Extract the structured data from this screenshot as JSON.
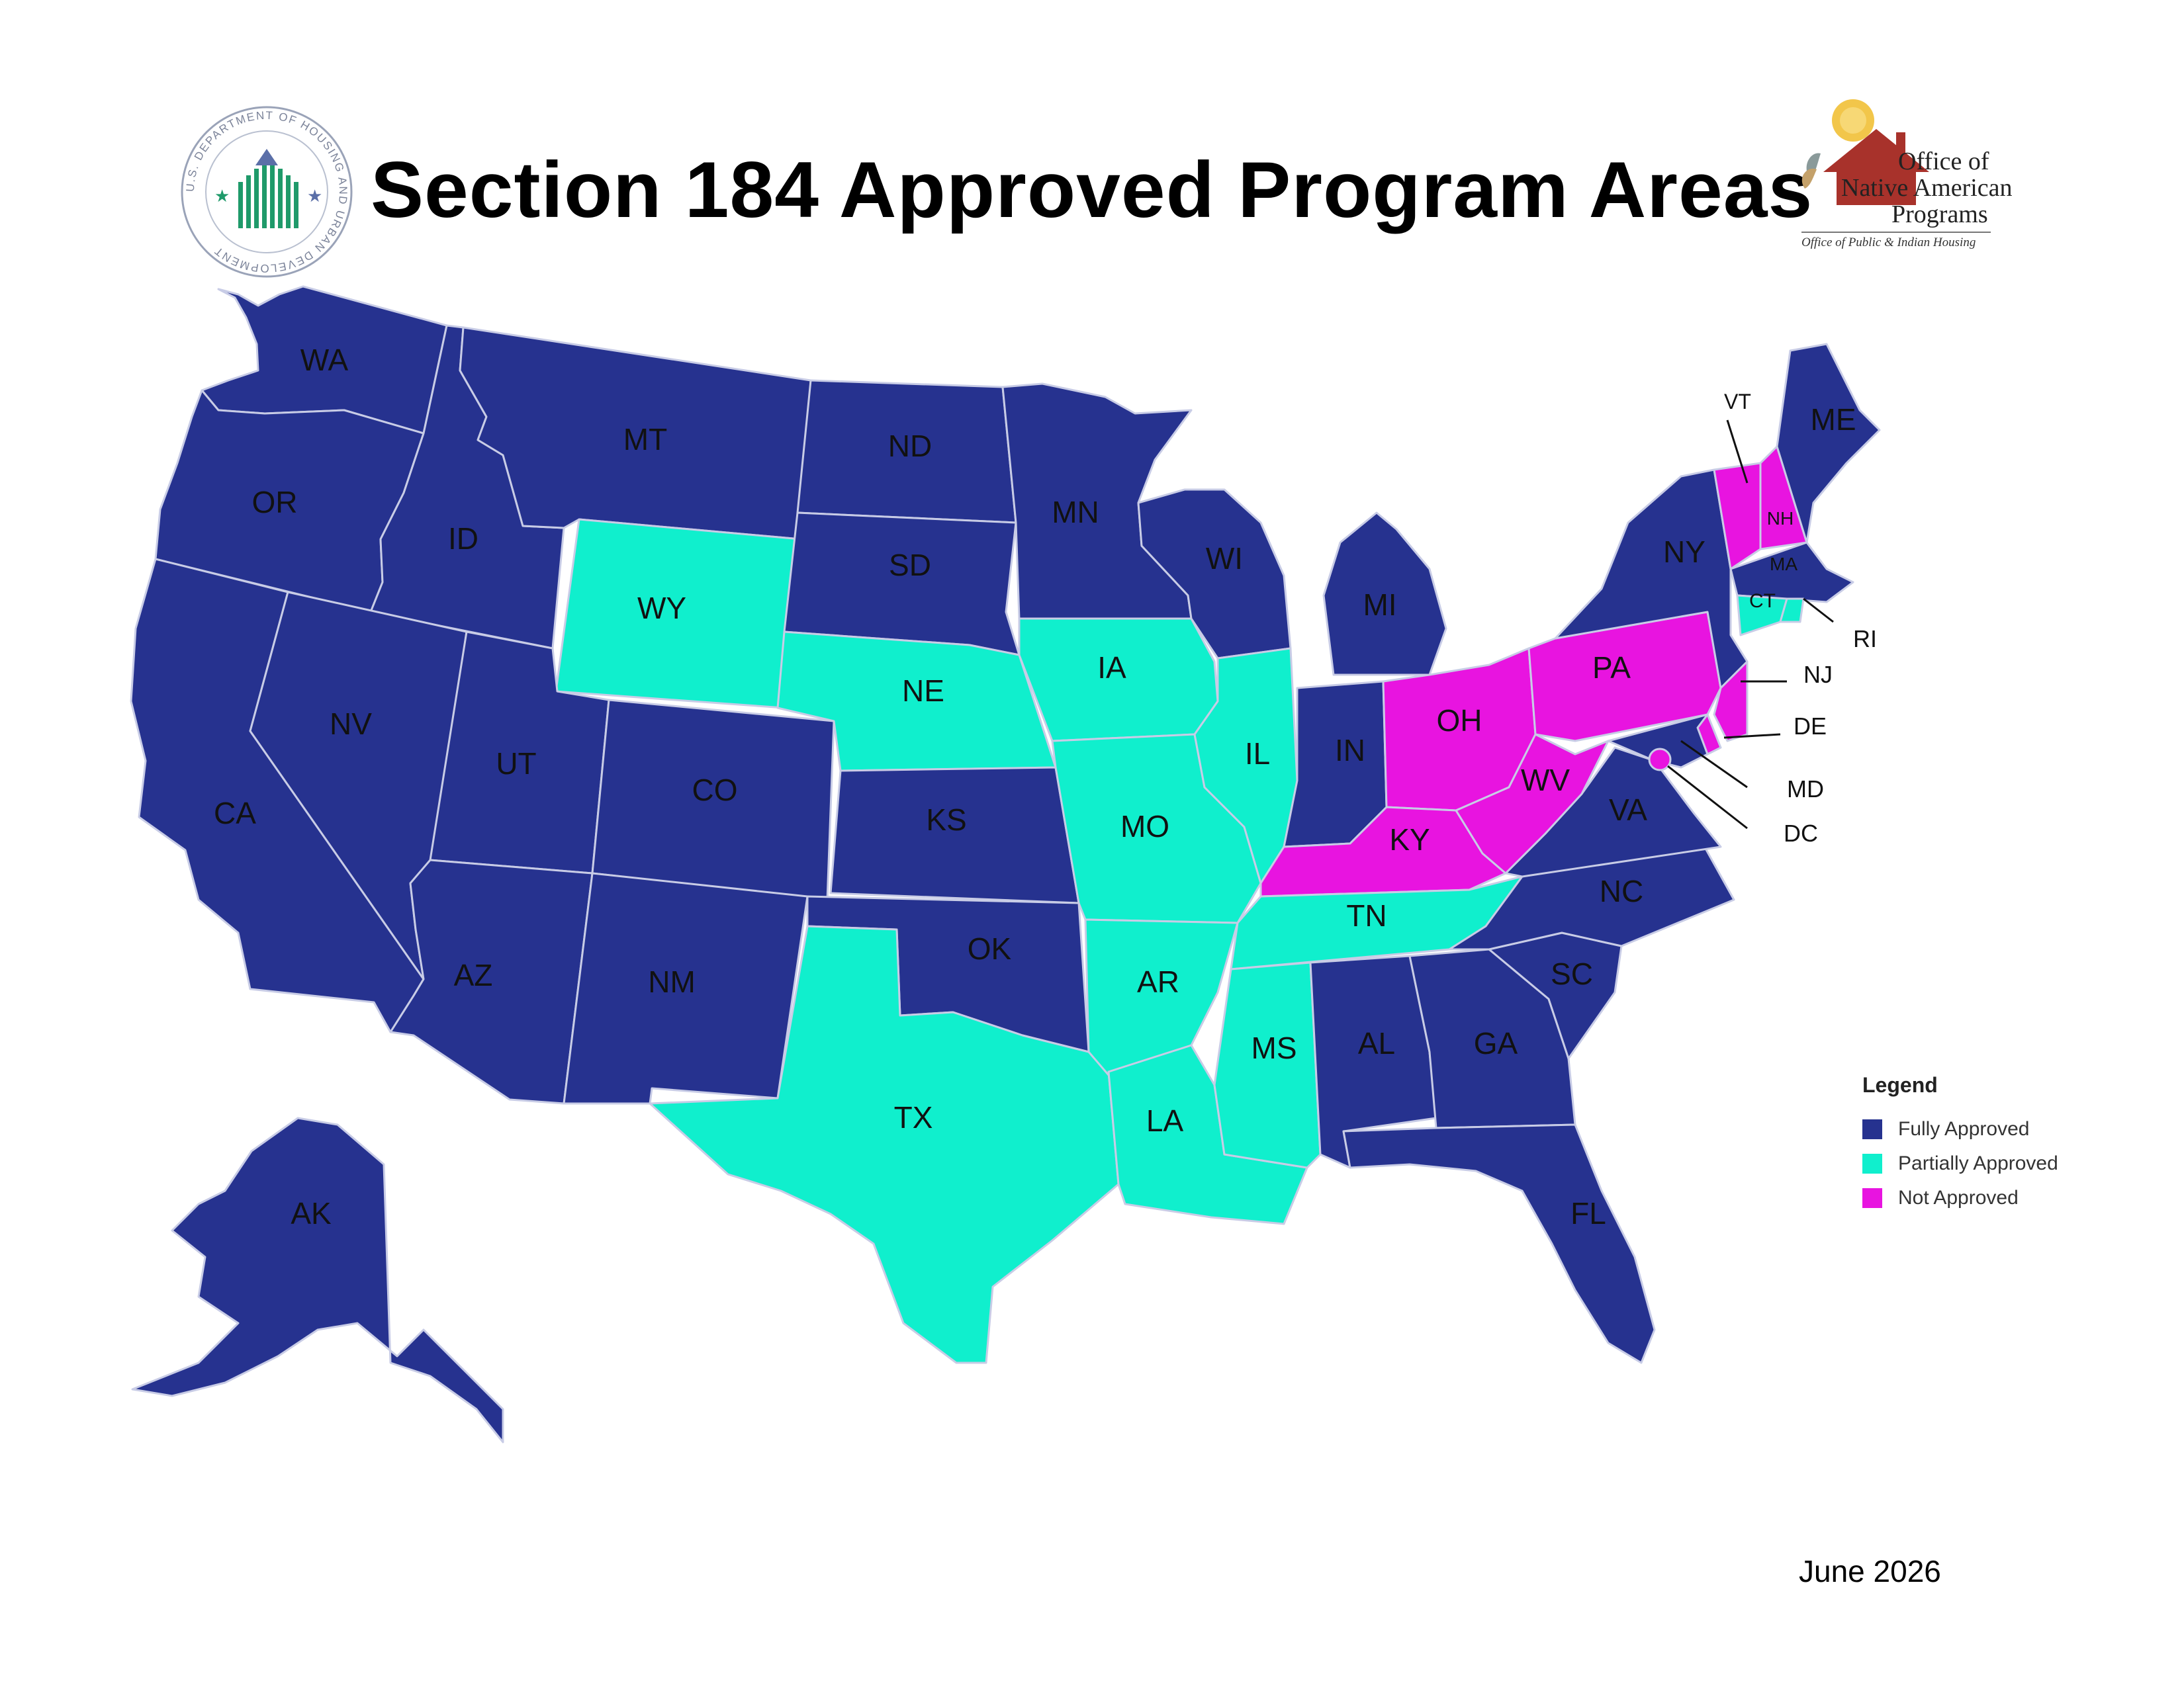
{
  "title": "Section 184 Approved Program Areas",
  "logos": {
    "hud_seal": {
      "ring_text": "U.S. DEPARTMENT OF HOUSING AND URBAN DEVELOPMENT"
    },
    "onap": {
      "line1": "Office of",
      "line2": "Native American",
      "line3": "Programs",
      "line4": "Office of Public & Indian Housing"
    }
  },
  "colors": {
    "fully_approved": "#26328f",
    "partially_approved": "#10efcd",
    "not_approved": "#e814e0",
    "border": "#c8cce6"
  },
  "legend": {
    "title": "Legend",
    "items": [
      {
        "label": "Fully Approved",
        "status": "fully_approved"
      },
      {
        "label": "Partially Approved",
        "status": "partially_approved"
      },
      {
        "label": "Not Approved",
        "status": "not_approved"
      }
    ]
  },
  "states": [
    {
      "code": "WA",
      "status": "fully_approved"
    },
    {
      "code": "OR",
      "status": "fully_approved"
    },
    {
      "code": "CA",
      "status": "fully_approved"
    },
    {
      "code": "ID",
      "status": "fully_approved"
    },
    {
      "code": "NV",
      "status": "fully_approved"
    },
    {
      "code": "MT",
      "status": "fully_approved"
    },
    {
      "code": "WY",
      "status": "partially_approved"
    },
    {
      "code": "UT",
      "status": "fully_approved"
    },
    {
      "code": "AZ",
      "status": "fully_approved"
    },
    {
      "code": "CO",
      "status": "fully_approved"
    },
    {
      "code": "NM",
      "status": "fully_approved"
    },
    {
      "code": "ND",
      "status": "fully_approved"
    },
    {
      "code": "SD",
      "status": "fully_approved"
    },
    {
      "code": "NE",
      "status": "partially_approved"
    },
    {
      "code": "KS",
      "status": "fully_approved"
    },
    {
      "code": "OK",
      "status": "fully_approved"
    },
    {
      "code": "TX",
      "status": "partially_approved"
    },
    {
      "code": "MN",
      "status": "fully_approved"
    },
    {
      "code": "IA",
      "status": "partially_approved"
    },
    {
      "code": "MO",
      "status": "partially_approved"
    },
    {
      "code": "AR",
      "status": "partially_approved"
    },
    {
      "code": "LA",
      "status": "partially_approved"
    },
    {
      "code": "WI",
      "status": "fully_approved"
    },
    {
      "code": "IL",
      "status": "partially_approved"
    },
    {
      "code": "MI",
      "status": "fully_approved"
    },
    {
      "code": "IN",
      "status": "fully_approved"
    },
    {
      "code": "OH",
      "status": "not_approved"
    },
    {
      "code": "KY",
      "status": "not_approved"
    },
    {
      "code": "TN",
      "status": "partially_approved"
    },
    {
      "code": "MS",
      "status": "partially_approved"
    },
    {
      "code": "AL",
      "status": "fully_approved"
    },
    {
      "code": "GA",
      "status": "fully_approved"
    },
    {
      "code": "FL",
      "status": "fully_approved"
    },
    {
      "code": "SC",
      "status": "fully_approved"
    },
    {
      "code": "NC",
      "status": "fully_approved"
    },
    {
      "code": "VA",
      "status": "fully_approved"
    },
    {
      "code": "WV",
      "status": "not_approved"
    },
    {
      "code": "PA",
      "status": "not_approved"
    },
    {
      "code": "NY",
      "status": "fully_approved"
    },
    {
      "code": "VT",
      "status": "not_approved"
    },
    {
      "code": "NH",
      "status": "not_approved"
    },
    {
      "code": "ME",
      "status": "fully_approved"
    },
    {
      "code": "MA",
      "status": "fully_approved"
    },
    {
      "code": "RI",
      "status": "partially_approved"
    },
    {
      "code": "CT",
      "status": "partially_approved"
    },
    {
      "code": "NJ",
      "status": "not_approved"
    },
    {
      "code": "DE",
      "status": "not_approved"
    },
    {
      "code": "MD",
      "status": "fully_approved"
    },
    {
      "code": "DC",
      "status": "not_approved"
    },
    {
      "code": "AK",
      "status": "fully_approved"
    }
  ],
  "date": "June 2026"
}
